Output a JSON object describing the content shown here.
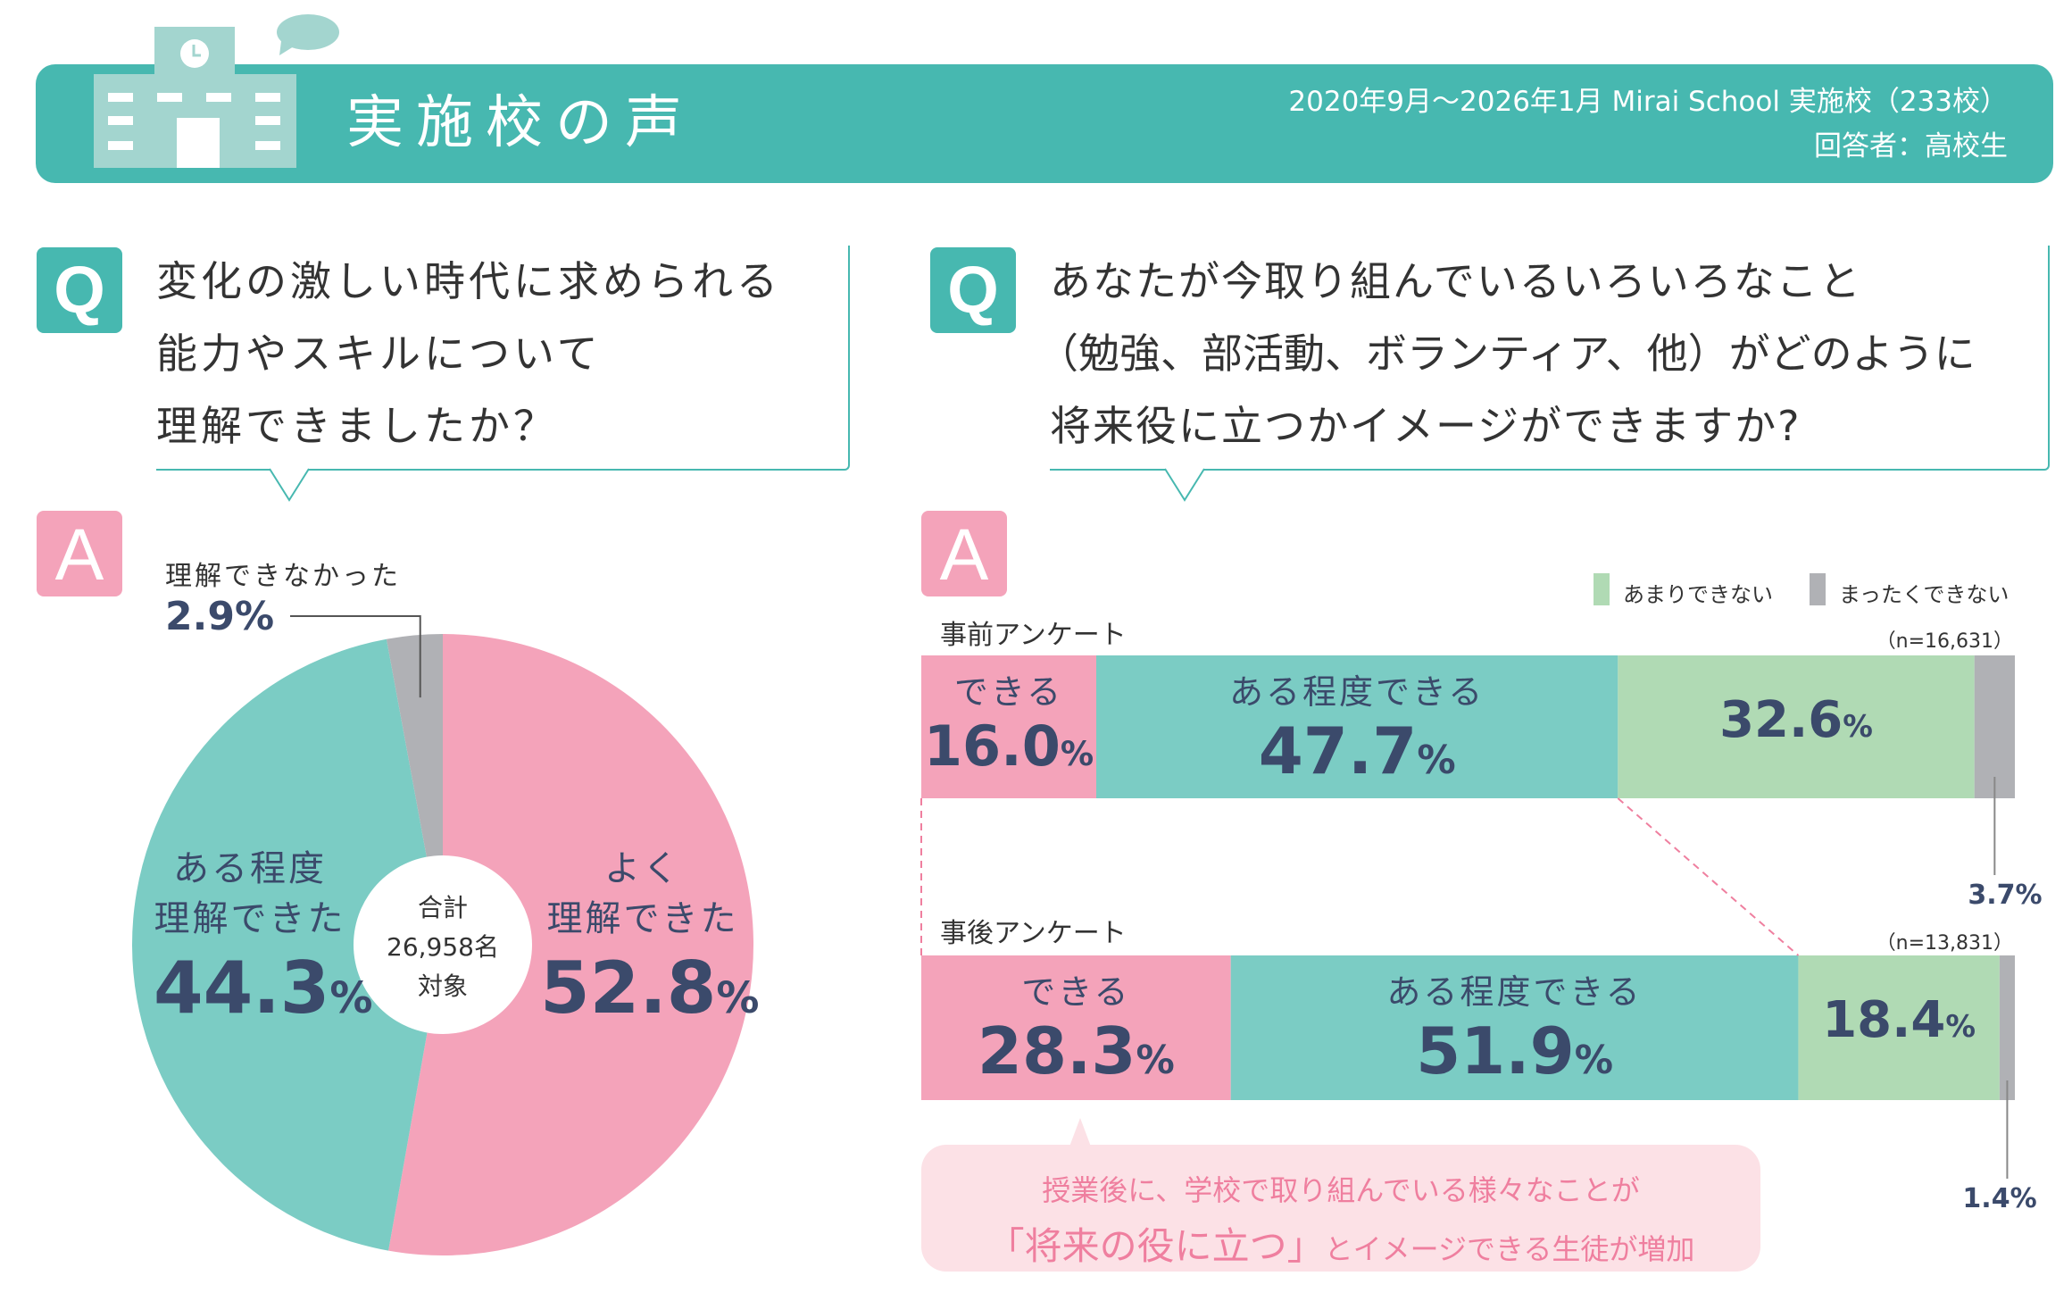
{
  "header": {
    "title": "実施校の声",
    "meta_line1": "2020年9月～2026年1月 Mirai School 実施校（233校）",
    "meta_line2": "回答者：高校生",
    "icons": [
      "school-building-icon",
      "speech-bubble-icon"
    ],
    "band_color": "#47b8b0"
  },
  "left": {
    "q_badge": "Q",
    "a_badge": "A",
    "question_lines": [
      "変化の激しい時代に求められる",
      "能力やスキルについて",
      "理解できましたか？"
    ],
    "center_lines": [
      "合計",
      "26,958名",
      "対象"
    ]
  },
  "right": {
    "q_badge": "Q",
    "a_badge": "A",
    "question_lines": [
      "あなたが今取り組んでいるいろいろなこと",
      "（勉強、部活動、ボランティア、他）がどのように",
      "将来役に立つかイメージができますか?"
    ],
    "legend": [
      {
        "label": "あまりできない",
        "color": "#b0dab4"
      },
      {
        "label": "まったくできない",
        "color": "#b0b1b5"
      }
    ],
    "callout_line1": "授業後に、学校で取り組んでいる様々なことが",
    "callout_line2_emph": "「将来の役に立つ」",
    "callout_line2_rest": "とイメージできる生徒が増加"
  },
  "chart_data": [
    {
      "type": "pie",
      "title": "変化の激しい時代に求められる能力やスキルについて理解できましたか？",
      "total_label": "合計 26,958名 対象",
      "slices": [
        {
          "label": "よく理解できた",
          "label_lines": [
            "よく",
            "理解できた"
          ],
          "value": 52.8,
          "display": "52.8",
          "color": "#f4a3ba"
        },
        {
          "label": "ある程度理解できた",
          "label_lines": [
            "ある程度",
            "理解できた"
          ],
          "value": 44.3,
          "display": "44.3",
          "color": "#7bccc4"
        },
        {
          "label": "理解できなかった",
          "label_lines": [
            "理解できなかった"
          ],
          "value": 2.9,
          "display": "2.9",
          "color": "#b0b1b5"
        }
      ],
      "unit": "%"
    },
    {
      "type": "bar",
      "orientation": "horizontal-stacked-100",
      "categories": [
        "できる",
        "ある程度できる",
        "あまりできない",
        "まったくできない"
      ],
      "colors": [
        "#f4a3ba",
        "#7bccc4",
        "#b0dab4",
        "#b0b1b5"
      ],
      "unit": "%",
      "series": [
        {
          "name": "事前アンケート",
          "n_label": "（n=16,631）",
          "values": [
            16.0,
            47.7,
            32.6,
            3.7
          ],
          "display": [
            "16.0",
            "47.7",
            "32.6",
            "3.7"
          ]
        },
        {
          "name": "事後アンケート",
          "n_label": "（n=13,831）",
          "values": [
            28.3,
            51.9,
            18.4,
            1.4
          ],
          "display": [
            "28.3",
            "51.9",
            "18.4",
            "1.4"
          ]
        }
      ]
    }
  ]
}
